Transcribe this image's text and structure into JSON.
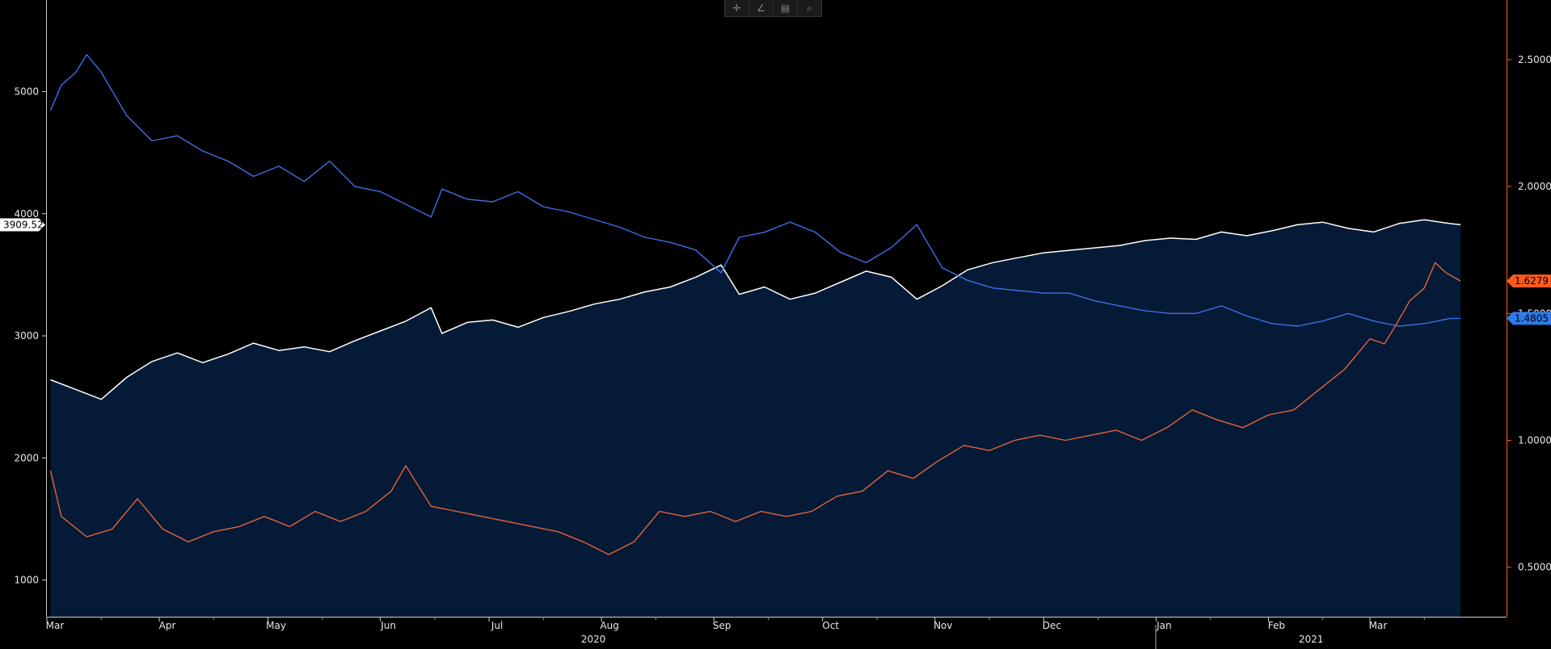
{
  "toolbar": {
    "items": [
      {
        "name": "crosshair-icon",
        "glyph": "✛"
      },
      {
        "name": "draw-line-icon",
        "glyph": "∠"
      },
      {
        "name": "table-icon",
        "glyph": "▤"
      },
      {
        "name": "zoom-icon",
        "glyph": "⌕"
      }
    ]
  },
  "chart_data": {
    "type": "line",
    "grid": false,
    "background": "#000000",
    "fill_color": "#041a36",
    "left_axis": {
      "ticks": [
        1000,
        2000,
        3000,
        4000,
        5000
      ],
      "range": [
        700,
        5750
      ]
    },
    "right_axis": {
      "ticks": [
        "0.5000",
        "1.0000",
        "1.5000",
        "2.0000",
        "2.5000"
      ],
      "range": [
        0.305,
        2.735
      ],
      "color": "#ff5a1f"
    },
    "x_months": [
      "Mar",
      "Apr",
      "May",
      "Jun",
      "Jul",
      "Aug",
      "Sep",
      "Oct",
      "Nov",
      "Dec",
      "Jan",
      "Feb",
      "Mar"
    ],
    "x_years": [
      "2020",
      "2021"
    ],
    "series": [
      {
        "key": "white",
        "axis": "left",
        "color": "#ffffff",
        "filled": true,
        "last_label": "3909.52",
        "points": [
          [
            "2020-03-02",
            2640
          ],
          [
            "2020-03-09",
            2560
          ],
          [
            "2020-03-16",
            2480
          ],
          [
            "2020-03-23",
            2660
          ],
          [
            "2020-03-30",
            2790
          ],
          [
            "2020-04-06",
            2860
          ],
          [
            "2020-04-13",
            2780
          ],
          [
            "2020-04-20",
            2850
          ],
          [
            "2020-04-27",
            2940
          ],
          [
            "2020-05-04",
            2880
          ],
          [
            "2020-05-11",
            2910
          ],
          [
            "2020-05-18",
            2870
          ],
          [
            "2020-05-25",
            2960
          ],
          [
            "2020-06-01",
            3040
          ],
          [
            "2020-06-08",
            3120
          ],
          [
            "2020-06-15",
            3230
          ],
          [
            "2020-06-18",
            3020
          ],
          [
            "2020-06-25",
            3110
          ],
          [
            "2020-07-02",
            3130
          ],
          [
            "2020-07-09",
            3070
          ],
          [
            "2020-07-16",
            3150
          ],
          [
            "2020-07-23",
            3200
          ],
          [
            "2020-07-30",
            3260
          ],
          [
            "2020-08-06",
            3300
          ],
          [
            "2020-08-13",
            3360
          ],
          [
            "2020-08-20",
            3400
          ],
          [
            "2020-08-27",
            3480
          ],
          [
            "2020-09-03",
            3580
          ],
          [
            "2020-09-08",
            3340
          ],
          [
            "2020-09-15",
            3400
          ],
          [
            "2020-09-22",
            3300
          ],
          [
            "2020-09-29",
            3350
          ],
          [
            "2020-10-06",
            3440
          ],
          [
            "2020-10-13",
            3530
          ],
          [
            "2020-10-20",
            3480
          ],
          [
            "2020-10-27",
            3300
          ],
          [
            "2020-11-03",
            3410
          ],
          [
            "2020-11-10",
            3540
          ],
          [
            "2020-11-17",
            3600
          ],
          [
            "2020-11-24",
            3640
          ],
          [
            "2020-12-01",
            3680
          ],
          [
            "2020-12-08",
            3700
          ],
          [
            "2020-12-15",
            3720
          ],
          [
            "2020-12-22",
            3740
          ],
          [
            "2020-12-29",
            3780
          ],
          [
            "2021-01-05",
            3800
          ],
          [
            "2021-01-12",
            3790
          ],
          [
            "2021-01-19",
            3850
          ],
          [
            "2021-01-26",
            3820
          ],
          [
            "2021-02-02",
            3860
          ],
          [
            "2021-02-09",
            3910
          ],
          [
            "2021-02-16",
            3930
          ],
          [
            "2021-02-23",
            3880
          ],
          [
            "2021-03-02",
            3850
          ],
          [
            "2021-03-09",
            3920
          ],
          [
            "2021-03-16",
            3950
          ],
          [
            "2021-03-23",
            3920
          ],
          [
            "2021-03-26",
            3909.52
          ]
        ]
      },
      {
        "key": "blue",
        "axis": "right",
        "color": "#3d6fe6",
        "filled": false,
        "last_label": "1.4805",
        "points": [
          [
            "2020-03-02",
            2.3
          ],
          [
            "2020-03-05",
            2.4
          ],
          [
            "2020-03-09",
            2.45
          ],
          [
            "2020-03-12",
            2.52
          ],
          [
            "2020-03-16",
            2.45
          ],
          [
            "2020-03-23",
            2.28
          ],
          [
            "2020-03-30",
            2.18
          ],
          [
            "2020-04-06",
            2.2
          ],
          [
            "2020-04-13",
            2.14
          ],
          [
            "2020-04-20",
            2.1
          ],
          [
            "2020-04-27",
            2.04
          ],
          [
            "2020-05-04",
            2.08
          ],
          [
            "2020-05-11",
            2.02
          ],
          [
            "2020-05-18",
            2.1
          ],
          [
            "2020-05-25",
            2.0
          ],
          [
            "2020-06-01",
            1.98
          ],
          [
            "2020-06-08",
            1.93
          ],
          [
            "2020-06-15",
            1.88
          ],
          [
            "2020-06-18",
            1.99
          ],
          [
            "2020-06-25",
            1.95
          ],
          [
            "2020-07-02",
            1.94
          ],
          [
            "2020-07-09",
            1.98
          ],
          [
            "2020-07-16",
            1.92
          ],
          [
            "2020-07-23",
            1.9
          ],
          [
            "2020-07-30",
            1.87
          ],
          [
            "2020-08-06",
            1.84
          ],
          [
            "2020-08-13",
            1.8
          ],
          [
            "2020-08-20",
            1.78
          ],
          [
            "2020-08-27",
            1.75
          ],
          [
            "2020-09-03",
            1.66
          ],
          [
            "2020-09-08",
            1.8
          ],
          [
            "2020-09-15",
            1.82
          ],
          [
            "2020-09-22",
            1.86
          ],
          [
            "2020-09-29",
            1.82
          ],
          [
            "2020-10-06",
            1.74
          ],
          [
            "2020-10-13",
            1.7
          ],
          [
            "2020-10-20",
            1.76
          ],
          [
            "2020-10-27",
            1.85
          ],
          [
            "2020-11-03",
            1.68
          ],
          [
            "2020-11-10",
            1.63
          ],
          [
            "2020-11-17",
            1.6
          ],
          [
            "2020-11-24",
            1.59
          ],
          [
            "2020-12-01",
            1.58
          ],
          [
            "2020-12-08",
            1.58
          ],
          [
            "2020-12-15",
            1.55
          ],
          [
            "2020-12-22",
            1.53
          ],
          [
            "2020-12-29",
            1.51
          ],
          [
            "2021-01-05",
            1.5
          ],
          [
            "2021-01-12",
            1.5
          ],
          [
            "2021-01-19",
            1.53
          ],
          [
            "2021-01-26",
            1.49
          ],
          [
            "2021-02-02",
            1.46
          ],
          [
            "2021-02-09",
            1.45
          ],
          [
            "2021-02-16",
            1.47
          ],
          [
            "2021-02-23",
            1.5
          ],
          [
            "2021-03-02",
            1.47
          ],
          [
            "2021-03-09",
            1.45
          ],
          [
            "2021-03-16",
            1.46
          ],
          [
            "2021-03-23",
            1.48
          ],
          [
            "2021-03-26",
            1.4805
          ]
        ]
      },
      {
        "key": "orange",
        "axis": "right",
        "color": "#e4633c",
        "filled": false,
        "last_label": "1.6279",
        "points": [
          [
            "2020-03-02",
            0.88
          ],
          [
            "2020-03-05",
            0.7
          ],
          [
            "2020-03-12",
            0.62
          ],
          [
            "2020-03-19",
            0.65
          ],
          [
            "2020-03-26",
            0.77
          ],
          [
            "2020-04-02",
            0.65
          ],
          [
            "2020-04-09",
            0.6
          ],
          [
            "2020-04-16",
            0.64
          ],
          [
            "2020-04-23",
            0.66
          ],
          [
            "2020-04-30",
            0.7
          ],
          [
            "2020-05-07",
            0.66
          ],
          [
            "2020-05-14",
            0.72
          ],
          [
            "2020-05-21",
            0.68
          ],
          [
            "2020-05-28",
            0.72
          ],
          [
            "2020-06-04",
            0.8
          ],
          [
            "2020-06-08",
            0.9
          ],
          [
            "2020-06-15",
            0.74
          ],
          [
            "2020-06-22",
            0.72
          ],
          [
            "2020-06-29",
            0.7
          ],
          [
            "2020-07-06",
            0.68
          ],
          [
            "2020-07-13",
            0.66
          ],
          [
            "2020-07-20",
            0.64
          ],
          [
            "2020-07-27",
            0.6
          ],
          [
            "2020-08-03",
            0.55
          ],
          [
            "2020-08-10",
            0.6
          ],
          [
            "2020-08-17",
            0.72
          ],
          [
            "2020-08-24",
            0.7
          ],
          [
            "2020-08-31",
            0.72
          ],
          [
            "2020-09-07",
            0.68
          ],
          [
            "2020-09-14",
            0.72
          ],
          [
            "2020-09-21",
            0.7
          ],
          [
            "2020-09-28",
            0.72
          ],
          [
            "2020-10-05",
            0.78
          ],
          [
            "2020-10-12",
            0.8
          ],
          [
            "2020-10-19",
            0.88
          ],
          [
            "2020-10-26",
            0.85
          ],
          [
            "2020-11-02",
            0.92
          ],
          [
            "2020-11-09",
            0.98
          ],
          [
            "2020-11-16",
            0.96
          ],
          [
            "2020-11-23",
            1.0
          ],
          [
            "2020-11-30",
            1.02
          ],
          [
            "2020-12-07",
            1.0
          ],
          [
            "2020-12-14",
            1.02
          ],
          [
            "2020-12-21",
            1.04
          ],
          [
            "2020-12-28",
            1.0
          ],
          [
            "2021-01-04",
            1.05
          ],
          [
            "2021-01-11",
            1.12
          ],
          [
            "2021-01-18",
            1.08
          ],
          [
            "2021-01-25",
            1.05
          ],
          [
            "2021-02-01",
            1.1
          ],
          [
            "2021-02-08",
            1.12
          ],
          [
            "2021-02-15",
            1.2
          ],
          [
            "2021-02-22",
            1.28
          ],
          [
            "2021-03-01",
            1.4
          ],
          [
            "2021-03-05",
            1.38
          ],
          [
            "2021-03-08",
            1.45
          ],
          [
            "2021-03-12",
            1.55
          ],
          [
            "2021-03-16",
            1.6
          ],
          [
            "2021-03-19",
            1.7
          ],
          [
            "2021-03-22",
            1.66
          ],
          [
            "2021-03-26",
            1.6279
          ]
        ]
      }
    ]
  }
}
